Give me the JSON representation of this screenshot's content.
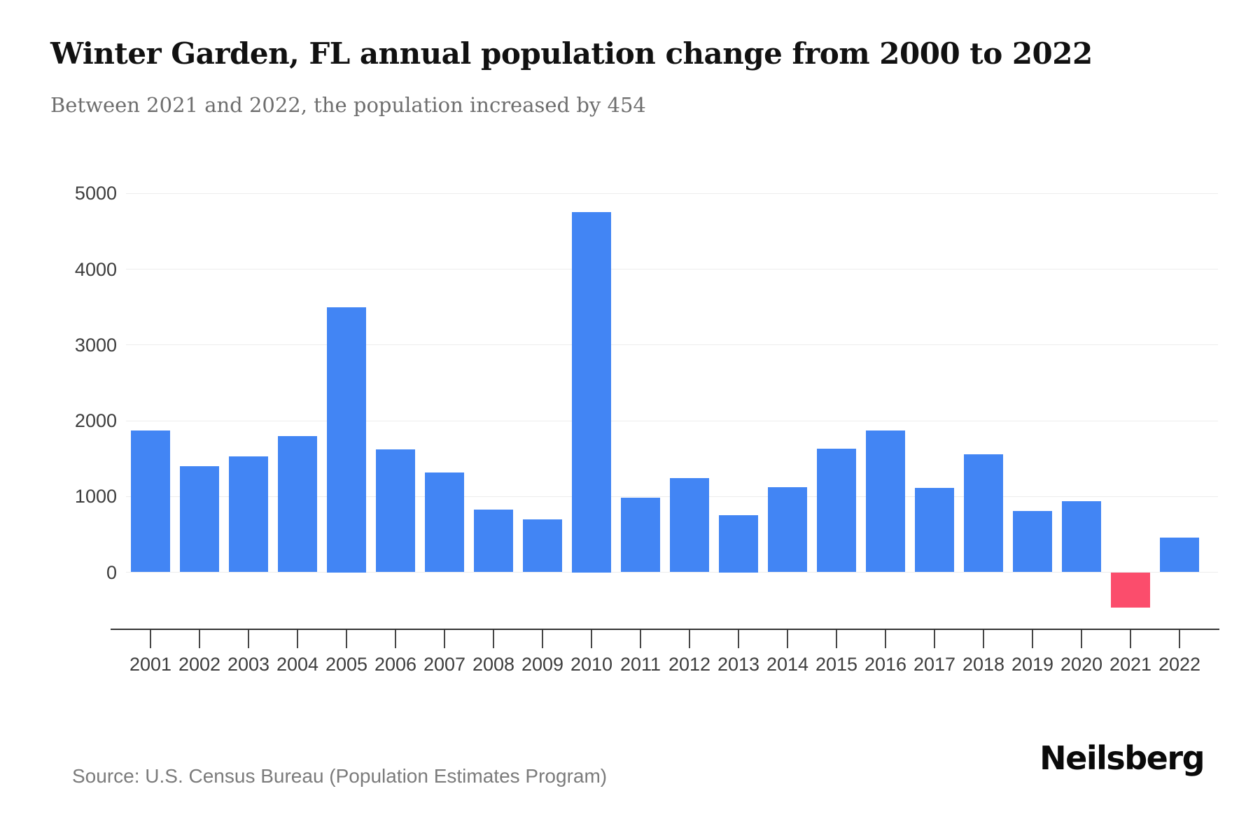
{
  "header": {
    "title": "Winter Garden, FL annual population change from 2000 to 2022",
    "subtitle": "Between 2021 and 2022, the population increased by 454"
  },
  "footer": {
    "source": "Source: U.S. Census Bureau (Population Estimates Program)",
    "brand": "Neilsberg"
  },
  "chart_data": {
    "type": "bar",
    "title": "Winter Garden, FL annual population change from 2000 to 2022",
    "subtitle": "Between 2021 and 2022, the population increased by 454",
    "xlabel": "",
    "ylabel": "",
    "categories": [
      "2001",
      "2002",
      "2003",
      "2004",
      "2005",
      "2006",
      "2007",
      "2008",
      "2009",
      "2010",
      "2011",
      "2012",
      "2013",
      "2014",
      "2015",
      "2016",
      "2017",
      "2018",
      "2019",
      "2020",
      "2021",
      "2022"
    ],
    "values": [
      1870,
      1400,
      1530,
      1800,
      3500,
      1620,
      1320,
      830,
      700,
      4750,
      980,
      1240,
      750,
      1120,
      1630,
      1870,
      1110,
      1560,
      810,
      940,
      -470,
      454
    ],
    "yticks": [
      5000,
      4000,
      3000,
      2000,
      1000,
      0
    ],
    "ylim": [
      -500,
      5000
    ],
    "grid": "horizontal",
    "legend": "none",
    "bar_color_positive": "#4285f4",
    "bar_color_negative": "#fb4d6c",
    "gridline_color": "#ededed",
    "axis_line_color": "#333333",
    "tick_label_color": "#3d3d3d"
  }
}
